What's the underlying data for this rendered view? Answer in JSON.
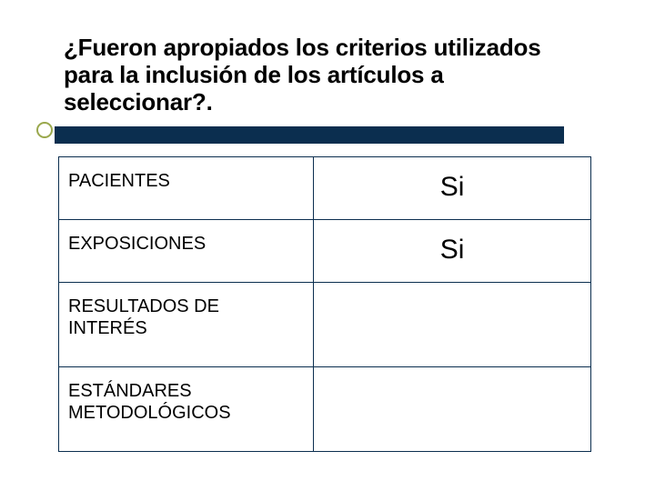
{
  "slide": {
    "title": "¿Fueron apropiados los criterios utilizados para la inclusión de los artículos a seleccionar?.",
    "accent_bar_color": "#0b2e4f",
    "bullet_border_color": "#9aa84d",
    "table": {
      "border_color": "#0b2e4f",
      "rows": [
        {
          "label": "PACIENTES",
          "value": "Si"
        },
        {
          "label": "EXPOSICIONES",
          "value": "Si"
        },
        {
          "label": "RESULTADOS DE INTERÉS",
          "value": ""
        },
        {
          "label": "ESTÁNDARES METODOLÓGICOS",
          "value": ""
        }
      ]
    }
  }
}
